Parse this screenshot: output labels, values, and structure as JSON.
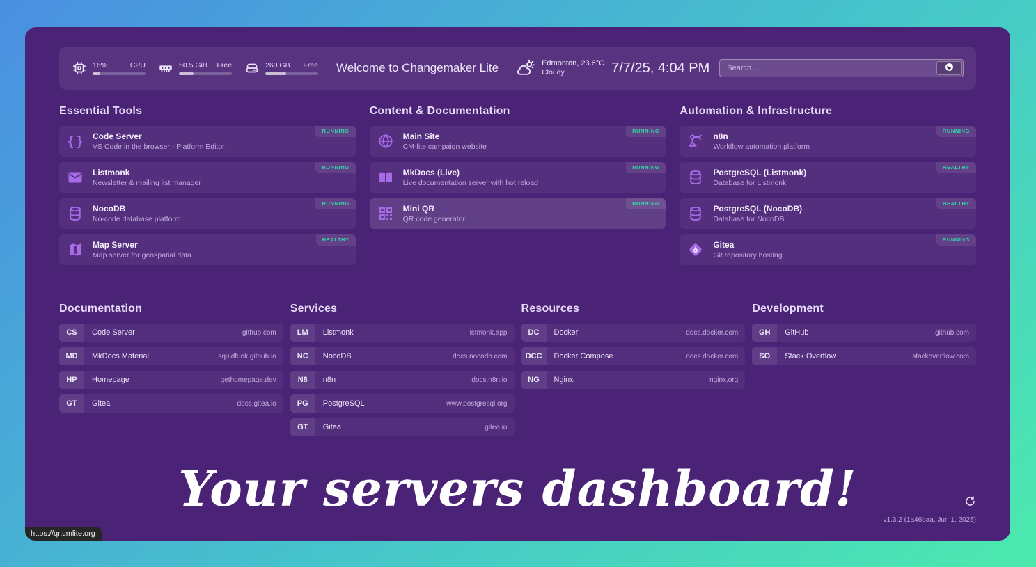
{
  "header": {
    "stats": [
      {
        "icon": "cpu-icon",
        "value": "16%",
        "label": "CPU",
        "progress": 15
      },
      {
        "icon": "memory-icon",
        "value": "50.5 GiB",
        "label": "Free",
        "progress": 27
      },
      {
        "icon": "disk-icon",
        "value": "260 GB",
        "label": "Free",
        "progress": 40
      }
    ],
    "greeting": "Welcome to Changemaker Lite",
    "weather": {
      "icon": "cloud-sun-icon",
      "location_temp": "Edmonton, 23.6°C",
      "condition": "Cloudy"
    },
    "datetime": "7/7/25, 4:04 PM",
    "search": {
      "placeholder": "Search...",
      "button_icon": "duckduckgo-icon"
    }
  },
  "service_groups": [
    {
      "title": "Essential Tools",
      "services": [
        {
          "icon": "code-brackets-icon",
          "name": "Code Server",
          "description": "VS Code in the browser - Platform Editor",
          "status": "RUNNING"
        },
        {
          "icon": "envelope-icon",
          "name": "Listmonk",
          "description": "Newsletter & mailing list manager",
          "status": "RUNNING"
        },
        {
          "icon": "database-icon",
          "name": "NocoDB",
          "description": "No-code database platform",
          "status": "RUNNING"
        },
        {
          "icon": "map-icon",
          "name": "Map Server",
          "description": "Map server for geospatial data",
          "status": "HEALTHY"
        }
      ]
    },
    {
      "title": "Content & Documentation",
      "services": [
        {
          "icon": "globe-icon",
          "name": "Main Site",
          "description": "CM-lite campaign website",
          "status": "RUNNING"
        },
        {
          "icon": "book-icon",
          "name": "MkDocs (Live)",
          "description": "Live documentation server with hot reload",
          "status": "RUNNING"
        },
        {
          "icon": "qr-code-icon",
          "name": "Mini QR",
          "description": "QR code generator",
          "status": "RUNNING",
          "highlighted": true
        }
      ]
    },
    {
      "title": "Automation & Infrastructure",
      "services": [
        {
          "icon": "robot-icon",
          "name": "n8n",
          "description": "Workflow automation platform",
          "status": "RUNNING"
        },
        {
          "icon": "database-icon",
          "name": "PostgreSQL (Listmonk)",
          "description": "Database for Listmonk",
          "status": "HEALTHY"
        },
        {
          "icon": "database-icon",
          "name": "PostgreSQL (NocoDB)",
          "description": "Database for NocoDB",
          "status": "HEALTHY"
        },
        {
          "icon": "gitea-icon",
          "name": "Gitea",
          "description": "Git repository hosting",
          "status": "RUNNING"
        }
      ]
    }
  ],
  "bookmark_groups": [
    {
      "title": "Documentation",
      "links": [
        {
          "abbr": "CS",
          "name": "Code Server",
          "domain": "github.com"
        },
        {
          "abbr": "MD",
          "name": "MkDocs Material",
          "domain": "squidfunk.github.io"
        },
        {
          "abbr": "HP",
          "name": "Homepage",
          "domain": "gethomepage.dev"
        },
        {
          "abbr": "GT",
          "name": "Gitea",
          "domain": "docs.gitea.io"
        }
      ]
    },
    {
      "title": "Services",
      "links": [
        {
          "abbr": "LM",
          "name": "Listmonk",
          "domain": "listmonk.app"
        },
        {
          "abbr": "NC",
          "name": "NocoDB",
          "domain": "docs.nocodb.com"
        },
        {
          "abbr": "N8",
          "name": "n8n",
          "domain": "docs.n8n.io"
        },
        {
          "abbr": "PG",
          "name": "PostgreSQL",
          "domain": "www.postgresql.org"
        },
        {
          "abbr": "GT",
          "name": "Gitea",
          "domain": "gitea.io"
        }
      ]
    },
    {
      "title": "Resources",
      "links": [
        {
          "abbr": "DC",
          "name": "Docker",
          "domain": "docs.docker.com"
        },
        {
          "abbr": "DCC",
          "name": "Docker Compose",
          "domain": "docs.docker.com"
        },
        {
          "abbr": "NG",
          "name": "Nginx",
          "domain": "nginx.org"
        }
      ]
    },
    {
      "title": "Development",
      "links": [
        {
          "abbr": "GH",
          "name": "GitHub",
          "domain": "github.com"
        },
        {
          "abbr": "SO",
          "name": "Stack Overflow",
          "domain": "stackoverflow.com"
        }
      ]
    }
  ],
  "footer": {
    "tagline": "Your servers dashboard!",
    "refresh_icon": "refresh-icon",
    "version": "v1.3.2 (1a46baa, Jun 1, 2025)"
  },
  "tooltip_url": "https://qr.cmlite.org",
  "colors": {
    "page_gradient_start": "#4a8fe2",
    "page_gradient_end": "#4ce9ae",
    "panel": "#4a2376",
    "accent_purple": "#a76be8",
    "status_green": "#2fd6a5"
  }
}
